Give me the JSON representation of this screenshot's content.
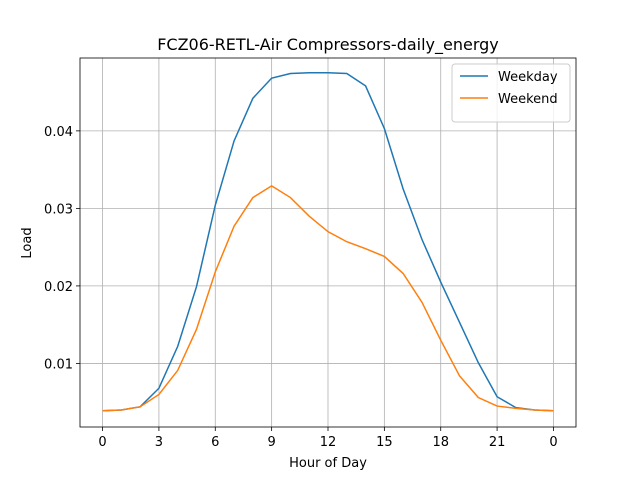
{
  "chart_data": {
    "type": "line",
    "title": "FCZ06-RETL-Air Compressors-daily_energy",
    "x_label": "Hour of Day",
    "y_label": "Load",
    "x": [
      0,
      1,
      2,
      3,
      4,
      5,
      6,
      7,
      8,
      9,
      10,
      11,
      12,
      13,
      14,
      15,
      16,
      17,
      18,
      19,
      20,
      21,
      22,
      23,
      24
    ],
    "series": [
      {
        "name": "Weekday",
        "color": "#1f77b4",
        "values": [
          0.0039,
          0.004,
          0.0044,
          0.0068,
          0.0122,
          0.0199,
          0.0304,
          0.0387,
          0.0442,
          0.0468,
          0.0474,
          0.0475,
          0.0475,
          0.0474,
          0.0458,
          0.0403,
          0.0325,
          0.026,
          0.0205,
          0.0153,
          0.0101,
          0.0057,
          0.0043,
          0.004,
          0.0039
        ]
      },
      {
        "name": "Weekend",
        "color": "#ff7f0e",
        "values": [
          0.0039,
          0.004,
          0.0044,
          0.006,
          0.0091,
          0.0144,
          0.0218,
          0.0277,
          0.0314,
          0.0329,
          0.0314,
          0.029,
          0.027,
          0.0257,
          0.0248,
          0.0238,
          0.0216,
          0.0179,
          0.013,
          0.0084,
          0.0056,
          0.0045,
          0.0042,
          0.004,
          0.0039
        ]
      }
    ],
    "xlim": [
      -1.2,
      25.2
    ],
    "xticks": [
      0,
      3,
      6,
      9,
      12,
      15,
      18,
      21,
      {
        "value": 24,
        "label": "0"
      }
    ],
    "ylim": [
      0.0018,
      0.0494
    ],
    "yticks": [
      0.01,
      0.02,
      0.03,
      0.04
    ],
    "grid": true,
    "legend": "upper right"
  }
}
